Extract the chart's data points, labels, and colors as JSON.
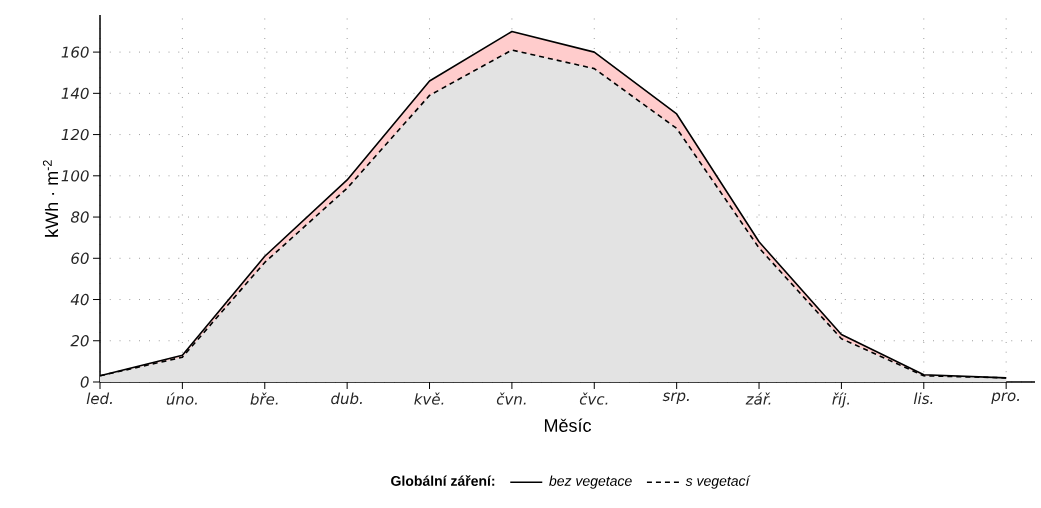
{
  "chart_data": {
    "type": "area",
    "xlabel": "Měsíc",
    "ylabel": "kWh · m$^{-2}$",
    "legend_title": "Globální záření:",
    "categories": [
      "led.",
      "úno.",
      "bře.",
      "dub.",
      "kvě.",
      "čvn.",
      "čvc.",
      "srp.",
      "zář.",
      "říj.",
      "lis.",
      "pro."
    ],
    "series": [
      {
        "name": "bez vegetace",
        "color": "#ffcccc",
        "line_style": "solid",
        "values": [
          3,
          13,
          61,
          98,
          146,
          170,
          160,
          130,
          68,
          23,
          3.5,
          2
        ]
      },
      {
        "name": "s vegetací",
        "color": "#e3e3e3",
        "line_style": "dashed",
        "values": [
          3,
          12,
          58,
          94,
          139,
          161,
          152,
          123,
          65,
          21,
          3,
          2
        ]
      }
    ],
    "ylim": [
      0,
      178
    ],
    "yticks": [
      0,
      20,
      40,
      60,
      80,
      100,
      120,
      140,
      160
    ],
    "grid": true,
    "legend": "bottom"
  }
}
